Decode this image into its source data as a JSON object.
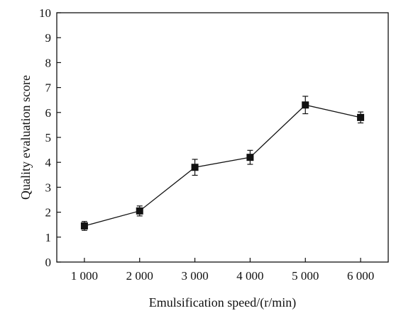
{
  "chart_data": {
    "type": "line",
    "title": "",
    "xlabel": "Emulsification speed/(r/min)",
    "ylabel": "Quality evaluation score",
    "categories": [
      "1 000",
      "2 000",
      "3 000",
      "4 000",
      "5 000",
      "6 000"
    ],
    "x": [
      1000,
      2000,
      3000,
      4000,
      5000,
      6000
    ],
    "xlim": [
      500,
      6500
    ],
    "ylim": [
      0,
      10
    ],
    "yticks": [
      0,
      1,
      2,
      3,
      4,
      5,
      6,
      7,
      8,
      9,
      10
    ],
    "series": [
      {
        "values": [
          1.45,
          2.05,
          3.8,
          4.2,
          6.3,
          5.8
        ],
        "error": [
          0.18,
          0.2,
          0.32,
          0.28,
          0.35,
          0.22
        ],
        "marker": "square",
        "color": "#111111"
      }
    ],
    "grid": false,
    "legend": "none"
  }
}
